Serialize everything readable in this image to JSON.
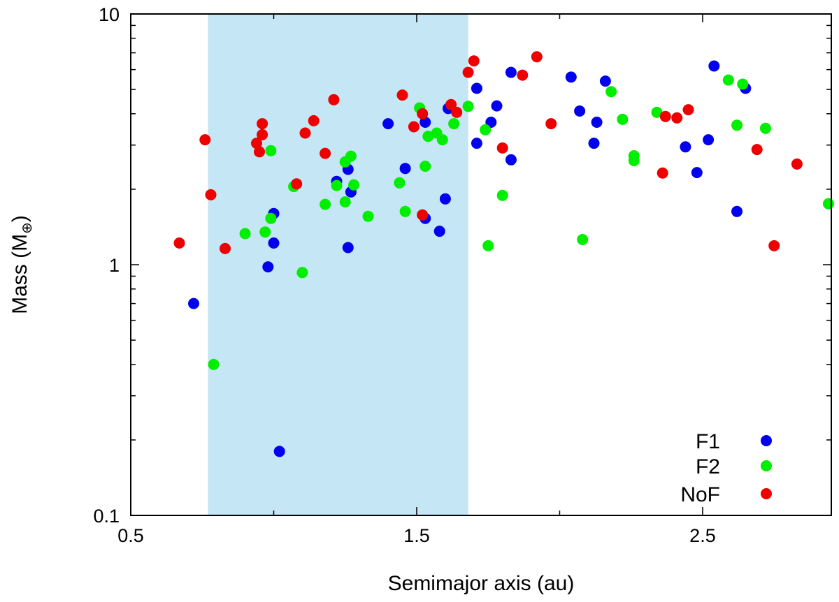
{
  "chart_data": {
    "type": "scatter",
    "title": "",
    "xlabel": "Semimajor axis (au)",
    "ylabel_main": "Mass (M",
    "ylabel_sub": "⊕",
    "ylabel_close": ")",
    "xlim": [
      0.5,
      2.95
    ],
    "ylim": [
      0.1,
      10
    ],
    "yscale": "log",
    "x_ticks": [
      0.5,
      1.5,
      2.5
    ],
    "x_tick_labels": [
      "0.5",
      "1.5",
      "2.5"
    ],
    "x_minor_ticks": [
      1.0,
      2.0
    ],
    "y_ticks": [
      0.1,
      1,
      10
    ],
    "y_tick_labels": [
      "0.1",
      "1",
      "10"
    ],
    "y_minor_ticks": [
      0.2,
      0.3,
      0.4,
      0.5,
      0.6,
      0.7,
      0.8,
      0.9,
      2,
      3,
      4,
      5,
      6,
      7,
      8,
      9
    ],
    "grid": false,
    "legend_position": "bottom-right",
    "shaded_region": {
      "x": [
        0.77,
        1.68
      ],
      "color": "#c5e6f4"
    },
    "series": [
      {
        "name": "F1",
        "color": "#0000ee",
        "points": [
          [
            0.72,
            0.7
          ],
          [
            0.98,
            0.98
          ],
          [
            1.0,
            1.6
          ],
          [
            1.0,
            1.22
          ],
          [
            1.02,
            0.18
          ],
          [
            1.22,
            2.15
          ],
          [
            1.26,
            2.4
          ],
          [
            1.26,
            1.17
          ],
          [
            1.27,
            1.95
          ],
          [
            1.4,
            3.65
          ],
          [
            1.46,
            2.42
          ],
          [
            1.53,
            3.7
          ],
          [
            1.53,
            1.53
          ],
          [
            1.58,
            1.36
          ],
          [
            1.6,
            1.83
          ],
          [
            1.61,
            4.2
          ],
          [
            1.71,
            5.05
          ],
          [
            1.71,
            3.05
          ],
          [
            1.76,
            3.7
          ],
          [
            1.78,
            4.3
          ],
          [
            1.83,
            2.62
          ],
          [
            1.83,
            5.85
          ],
          [
            2.04,
            5.6
          ],
          [
            2.07,
            4.1
          ],
          [
            2.12,
            3.05
          ],
          [
            2.13,
            3.7
          ],
          [
            2.16,
            5.4
          ],
          [
            2.44,
            2.95
          ],
          [
            2.48,
            2.33
          ],
          [
            2.52,
            3.15
          ],
          [
            2.54,
            6.2
          ],
          [
            2.62,
            1.63
          ],
          [
            2.65,
            5.05
          ]
        ]
      },
      {
        "name": "F2",
        "color": "#00ee00",
        "points": [
          [
            0.79,
            0.4
          ],
          [
            0.9,
            1.33
          ],
          [
            0.97,
            1.35
          ],
          [
            0.99,
            2.85
          ],
          [
            0.99,
            1.53
          ],
          [
            1.07,
            2.05
          ],
          [
            1.1,
            0.93
          ],
          [
            1.18,
            1.74
          ],
          [
            1.22,
            2.07
          ],
          [
            1.25,
            2.57
          ],
          [
            1.25,
            1.78
          ],
          [
            1.27,
            2.71
          ],
          [
            1.28,
            2.08
          ],
          [
            1.33,
            1.56
          ],
          [
            1.44,
            2.12
          ],
          [
            1.46,
            1.63
          ],
          [
            1.51,
            4.22
          ],
          [
            1.53,
            2.47
          ],
          [
            1.54,
            3.25
          ],
          [
            1.57,
            3.35
          ],
          [
            1.59,
            3.15
          ],
          [
            1.63,
            3.65
          ],
          [
            1.68,
            4.28
          ],
          [
            1.74,
            3.45
          ],
          [
            1.75,
            1.19
          ],
          [
            1.8,
            1.89
          ],
          [
            2.08,
            1.26
          ],
          [
            2.18,
            4.9
          ],
          [
            2.22,
            3.8
          ],
          [
            2.26,
            2.72
          ],
          [
            2.26,
            2.6
          ],
          [
            2.34,
            4.05
          ],
          [
            2.59,
            5.45
          ],
          [
            2.62,
            3.6
          ],
          [
            2.64,
            5.25
          ],
          [
            2.72,
            3.5
          ],
          [
            2.94,
            1.75
          ]
        ]
      },
      {
        "name": "NoF",
        "color": "#ee0000",
        "points": [
          [
            0.67,
            1.22
          ],
          [
            0.76,
            3.15
          ],
          [
            0.78,
            1.9
          ],
          [
            0.83,
            1.16
          ],
          [
            0.94,
            3.05
          ],
          [
            0.95,
            2.82
          ],
          [
            0.96,
            3.65
          ],
          [
            0.96,
            3.3
          ],
          [
            1.08,
            2.1
          ],
          [
            1.11,
            3.35
          ],
          [
            1.14,
            3.75
          ],
          [
            1.18,
            2.78
          ],
          [
            1.21,
            4.55
          ],
          [
            1.45,
            4.75
          ],
          [
            1.49,
            3.55
          ],
          [
            1.52,
            4.0
          ],
          [
            1.52,
            1.58
          ],
          [
            1.62,
            4.35
          ],
          [
            1.64,
            4.05
          ],
          [
            1.68,
            5.85
          ],
          [
            1.7,
            6.5
          ],
          [
            1.8,
            2.92
          ],
          [
            1.87,
            5.7
          ],
          [
            1.92,
            6.75
          ],
          [
            1.97,
            3.65
          ],
          [
            2.36,
            2.32
          ],
          [
            2.37,
            3.9
          ],
          [
            2.41,
            3.85
          ],
          [
            2.45,
            4.15
          ],
          [
            2.69,
            2.88
          ],
          [
            2.75,
            1.19
          ],
          [
            2.83,
            2.52
          ]
        ]
      }
    ]
  }
}
